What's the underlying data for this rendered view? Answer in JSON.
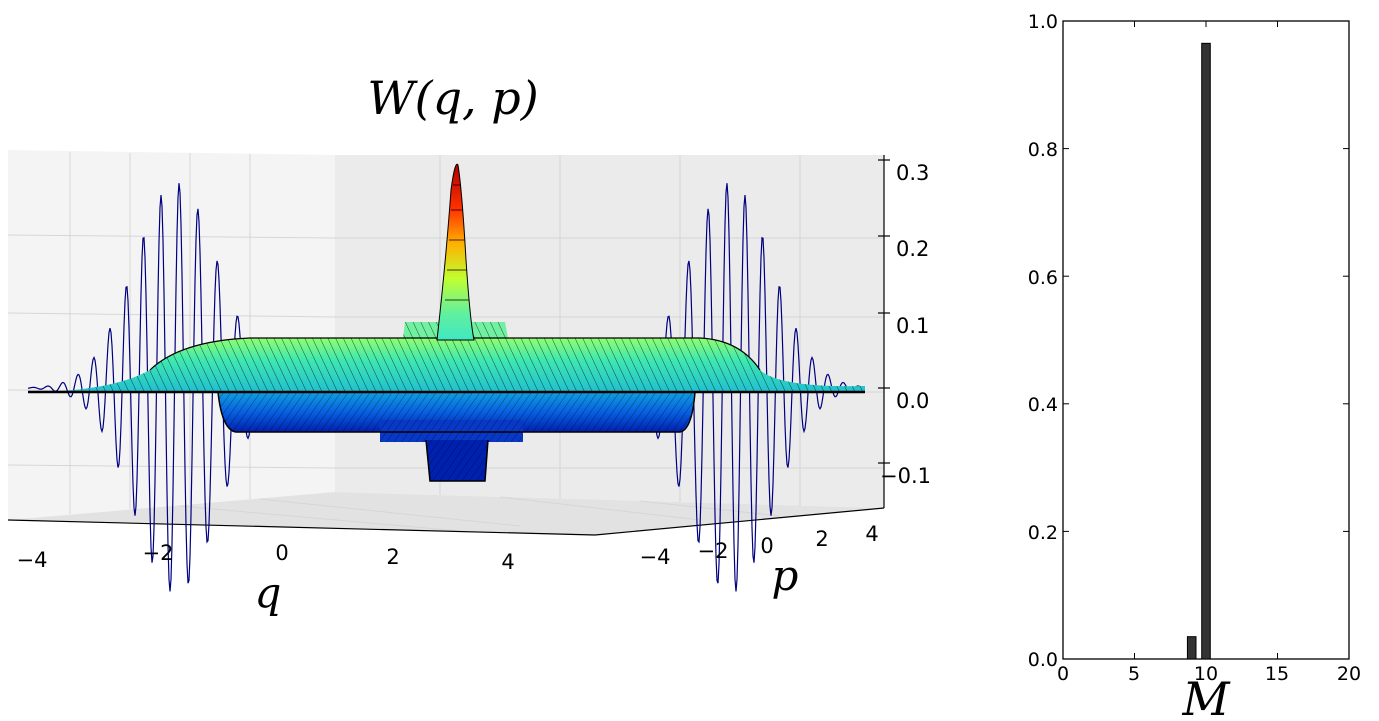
{
  "chart_data": [
    {
      "type": "surface",
      "title": "W(q, p)",
      "xlabel": "q",
      "ylabel": "p",
      "x_ticks": [
        "−4",
        "−2",
        "0",
        "2",
        "4"
      ],
      "y_ticks": [
        "−4",
        "−2",
        "0",
        "2",
        "4"
      ],
      "z_ticks": [
        "0.3",
        "0.2",
        "0.1",
        "0.0",
        "−0.1"
      ],
      "xlim": [
        -5,
        5
      ],
      "ylim": [
        -5,
        5
      ],
      "zlim": [
        -0.15,
        0.32
      ],
      "colormap": "jet",
      "grid": true,
      "peak_value": 0.32,
      "projection_color": "#000080"
    },
    {
      "type": "bar",
      "xlabel": "M",
      "x_ticks": [
        "0",
        "5",
        "10",
        "15",
        "20"
      ],
      "y_ticks": [
        "0.0",
        "0.2",
        "0.4",
        "0.6",
        "0.8",
        "1.0"
      ],
      "xlim": [
        0,
        20
      ],
      "ylim": [
        0,
        1.0
      ],
      "bar_color": "#333333",
      "bars": [
        {
          "x": 9,
          "value": 0.035
        },
        {
          "x": 10,
          "value": 0.965
        }
      ]
    }
  ]
}
